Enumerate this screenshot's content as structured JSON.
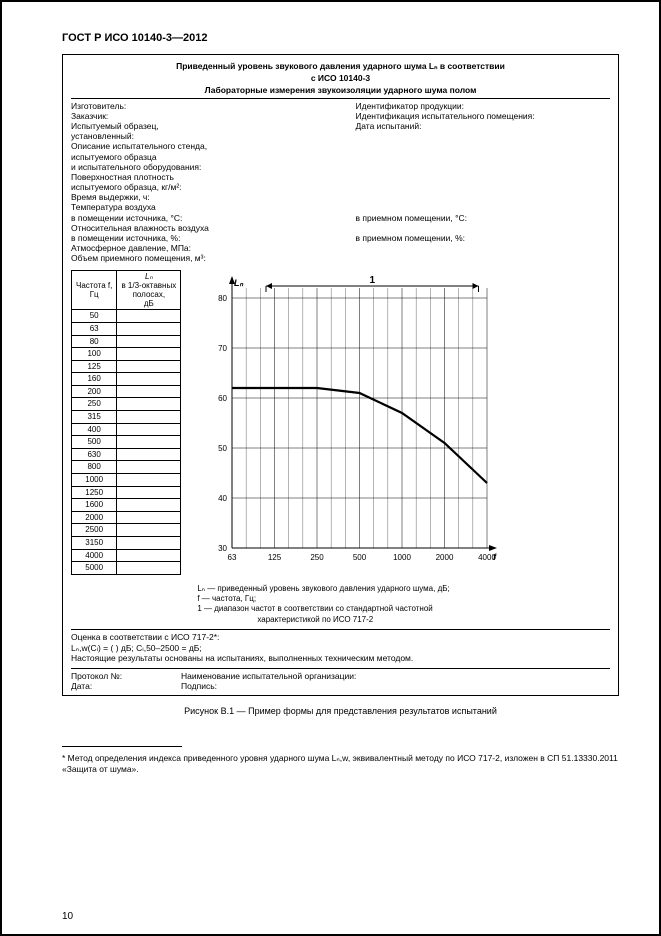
{
  "standard_code": "ГОСТ Р ИСО 10140-3—2012",
  "form": {
    "title_l1": "Приведенный уровень звукового давления ударного шума Lₙ в соответствии",
    "title_l2": "с ИСО 10140-3",
    "title_l3": "Лабораторные измерения звукоизоляции ударного шума полом",
    "left": [
      "Изготовитель:",
      "Заказчик:",
      "Испытуемый образец,",
      "установленный:",
      "Описание испытательного стенда,",
      "испытуемого образца",
      "и испытательного оборудования:",
      "Поверхностная плотность",
      "испытуемого образца, кг/м²:",
      "Время выдержки, ч:",
      "Температура воздуха",
      "в помещении источника, °С:",
      "Относительная влажность воздуха",
      "в помещении источника, %:",
      "Атмосферное давление, МПа:",
      "Объем приемного помещения, м³:"
    ],
    "right": [
      "Идентификатор продукции:",
      "Идентификация испытательного помещения:",
      "Дата испытаний:",
      "",
      "",
      "",
      "",
      "",
      "",
      "",
      "",
      "в приемном помещении, °С:",
      "",
      "в приемном помещении, %:"
    ]
  },
  "table": {
    "col1_l1": "Частота f,",
    "col1_l2": "Гц",
    "col2_l1": "Lₙ",
    "col2_l2": "в 1/3-октавных",
    "col2_l3": "полосах,",
    "col2_l4": "дБ",
    "rows": [
      "50",
      "63",
      "80",
      "100",
      "125",
      "160",
      "200",
      "250",
      "315",
      "400",
      "500",
      "630",
      "800",
      "1000",
      "1250",
      "1600",
      "2000",
      "2500",
      "3150",
      "4000",
      "5000"
    ]
  },
  "chart": {
    "y_label": "Lₙ",
    "y_ticks": [
      30,
      40,
      50,
      60,
      70,
      80
    ],
    "x_ticks": [
      "63",
      "125",
      "250",
      "500",
      "1000",
      "2000",
      "4000"
    ],
    "x_label": "f",
    "range_label": "1",
    "series": [
      {
        "x": 1,
        "y": 62
      },
      {
        "x": 2,
        "y": 62
      },
      {
        "x": 3,
        "y": 62
      },
      {
        "x": 4,
        "y": 61
      },
      {
        "x": 5,
        "y": 57
      },
      {
        "x": 6,
        "y": 51
      },
      {
        "x": 7,
        "y": 43
      }
    ],
    "line_color": "#000000",
    "grid_color": "#000000",
    "tick_fontsize": 8
  },
  "legend": {
    "l1": "Lₙ — приведенный уровень звукового давления ударного шума, дБ;",
    "l2": "f — частота, Гц;",
    "l3": "1 — диапазон частот в соответствии со стандартной частотной",
    "l4": "характеристикой по ИСО 717-2"
  },
  "eval": {
    "l1": "Оценка в соответствии с ИСО 717-2*:",
    "l2": "   Lₙ,w(Cₗ) =   (      ) дБ;    Cₗ,50–2500 =         дБ;",
    "l3": "Настоящие результаты основаны на испытаниях, выполненных техническим методом."
  },
  "protocol": {
    "left1": "Протокол №:",
    "left2": "Дата:",
    "right1": "Наименование испытательной организации:",
    "right2": "Подпись:"
  },
  "caption": "Рисунок В.1 — Пример формы для представления результатов испытаний",
  "footnote": "* Метод определения индекса приведенного уровня ударного шума Lₙ,w, эквивалентный методу по ИСО 717-2, изложен в СП 51.13330.2011 «Защита от шума».",
  "page_number": "10"
}
